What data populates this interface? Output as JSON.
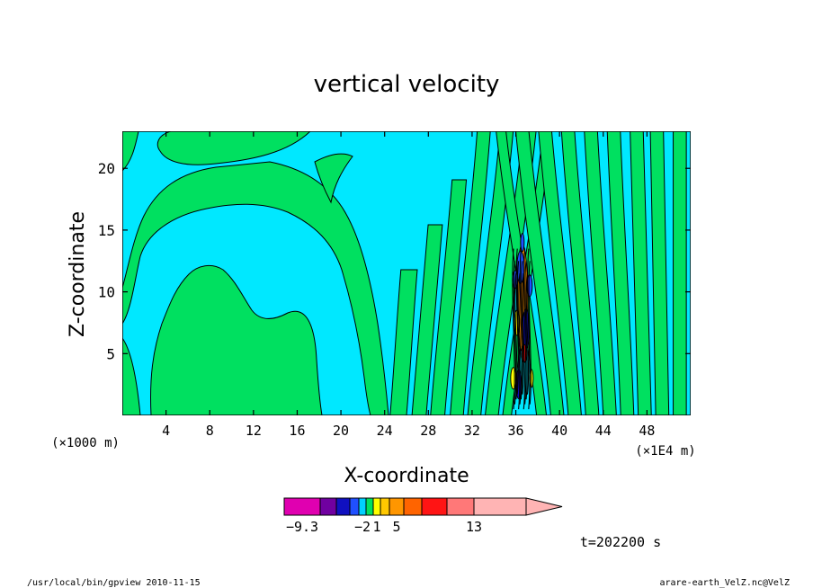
{
  "chart_data": {
    "type": "heatmap",
    "title": "vertical velocity",
    "xlabel": "X-coordinate",
    "ylabel": "Z-coordinate",
    "x_unit_left": "(×1000 m)",
    "x_unit_right": "(×1E4 m)",
    "xlim": [
      0,
      52
    ],
    "ylim": [
      0,
      23
    ],
    "x_ticks": [
      4,
      8,
      12,
      16,
      20,
      24,
      28,
      32,
      36,
      40,
      44,
      48
    ],
    "y_ticks": [
      5,
      10,
      15,
      20
    ],
    "colorbar": {
      "colors": [
        "#e000b0",
        "#7000a0",
        "#1010c0",
        "#2050ff",
        "#00d0ff",
        "#00e060",
        "#ffff00",
        "#ffc800",
        "#ff9600",
        "#ff6400",
        "#ff1414",
        "#ff7878",
        "#ffb4b4"
      ],
      "labels": [
        {
          "text": "−9.3",
          "index": 0.5
        },
        {
          "text": "−2",
          "index": 4.5
        },
        {
          "text": "1",
          "index": 6.5
        },
        {
          "text": "5",
          "index": 8.5
        },
        {
          "text": "13",
          "index": 12.0
        }
      ]
    },
    "field_regions": {
      "positive_color": "#00e060",
      "negative_color": "#00e8ff"
    }
  },
  "time_label": "t=202200 s",
  "footer_left": "/usr/local/bin/gpview   2010-11-15",
  "footer_right": "arare-earth_VelZ.nc@VelZ"
}
